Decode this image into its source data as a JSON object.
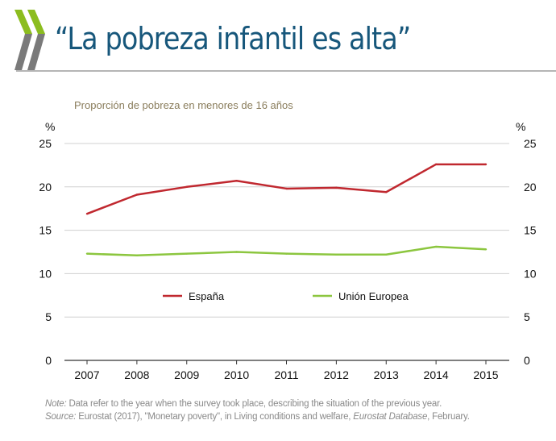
{
  "title": "“La pobreza infantil es alta”",
  "chart_data": {
    "type": "line",
    "title": "Proporción de pobreza en menores de 16 años",
    "ylabel_left": "%",
    "ylabel_right": "%",
    "categories": [
      "2007",
      "2008",
      "2009",
      "2010",
      "2011",
      "2012",
      "2013",
      "2014",
      "2015"
    ],
    "ylim": [
      0,
      25
    ],
    "yticks": [
      0,
      5,
      10,
      15,
      20,
      25
    ],
    "grid": true,
    "legend": "center",
    "series": [
      {
        "name": "España",
        "color": "#c0282f",
        "values": [
          16.9,
          19.1,
          20.0,
          20.7,
          19.8,
          19.9,
          19.4,
          22.6,
          22.6
        ]
      },
      {
        "name": "Unión Europea",
        "color": "#8cc63f",
        "values": [
          12.3,
          12.1,
          12.3,
          12.5,
          12.3,
          12.2,
          12.2,
          13.1,
          12.8
        ]
      }
    ]
  },
  "notes": {
    "note_label": "Note:",
    "note_text": " Data refer to the year when the survey took place, describing the situation of the previous year.",
    "source_label": "Source:",
    "source_text": " Eurostat (2017), \"Monetary poverty\", in Living conditions and welfare, ",
    "source_db": "Eurostat Database",
    "source_end": ", February."
  }
}
